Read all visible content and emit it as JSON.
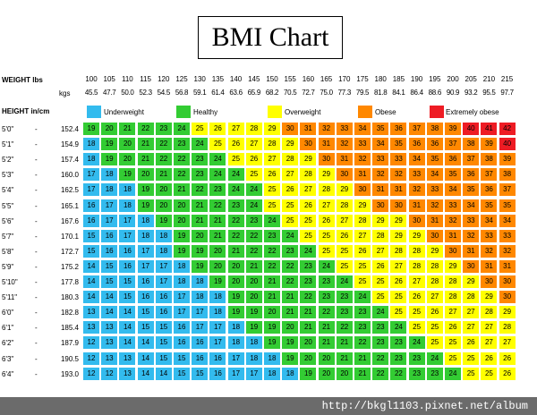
{
  "title": "BMI Chart",
  "weight_label": "WEIGHT lbs",
  "kgs_label": "kgs",
  "height_label": "HEIGHT in/cm",
  "watermark": "http://bkgl1103.pixnet.net/album",
  "colors": {
    "underweight": "#33bbee",
    "healthy": "#33cc33",
    "overweight": "#ffff00",
    "obese": "#ff8800",
    "extremely_obese": "#ee1c24"
  },
  "chart_data": {
    "type": "table",
    "title": "BMI Chart",
    "legend": [
      {
        "name": "Underweight",
        "color": "#33bbee"
      },
      {
        "name": "Healthy",
        "color": "#33cc33"
      },
      {
        "name": "Overweight",
        "color": "#ffff00"
      },
      {
        "name": "Obese",
        "color": "#ff8800"
      },
      {
        "name": "Extremely obese",
        "color": "#ee1c24"
      }
    ],
    "weights_lbs": [
      "100",
      "105",
      "110",
      "115",
      "120",
      "125",
      "130",
      "135",
      "140",
      "145",
      "150",
      "155",
      "160",
      "165",
      "170",
      "175",
      "180",
      "185",
      "190",
      "195",
      "200",
      "205",
      "210",
      "215"
    ],
    "weights_kgs": [
      "45.5",
      "47.7",
      "50.0",
      "52.3",
      "54.5",
      "56.8",
      "59.1",
      "61.4",
      "63.6",
      "65.9",
      "68.2",
      "70.5",
      "72.7",
      "75.0",
      "77.3",
      "79.5",
      "81.8",
      "84.1",
      "86.4",
      "88.6",
      "90.9",
      "93.2",
      "95.5",
      "97.7"
    ],
    "heights": [
      {
        "in": "5'0\"",
        "cm": "152.4"
      },
      {
        "in": "5'1\"",
        "cm": "154.9"
      },
      {
        "in": "5'2\"",
        "cm": "157.4"
      },
      {
        "in": "5'3\"",
        "cm": "160.0"
      },
      {
        "in": "5'4\"",
        "cm": "162.5"
      },
      {
        "in": "5'5\"",
        "cm": "165.1"
      },
      {
        "in": "5'6\"",
        "cm": "167.6"
      },
      {
        "in": "5'7\"",
        "cm": "170.1"
      },
      {
        "in": "5'8\"",
        "cm": "172.7"
      },
      {
        "in": "5'9\"",
        "cm": "175.2"
      },
      {
        "in": "5'10\"",
        "cm": "177.8"
      },
      {
        "in": "5'11\"",
        "cm": "180.3"
      },
      {
        "in": "6'0\"",
        "cm": "182.8"
      },
      {
        "in": "6'1\"",
        "cm": "185.4"
      },
      {
        "in": "6'2\"",
        "cm": "187.9"
      },
      {
        "in": "6'3\"",
        "cm": "190.5"
      },
      {
        "in": "6'4\"",
        "cm": "193.0"
      }
    ],
    "bmi_values": [
      [
        19,
        20,
        21,
        22,
        23,
        24,
        25,
        26,
        27,
        28,
        29,
        30,
        31,
        32,
        33,
        34,
        35,
        36,
        37,
        38,
        39,
        40,
        41,
        42
      ],
      [
        18,
        19,
        20,
        21,
        22,
        23,
        24,
        25,
        26,
        27,
        28,
        29,
        30,
        31,
        32,
        33,
        34,
        35,
        36,
        36,
        37,
        38,
        39,
        40
      ],
      [
        18,
        19,
        20,
        21,
        22,
        22,
        23,
        24,
        25,
        26,
        27,
        28,
        29,
        30,
        31,
        32,
        33,
        33,
        34,
        35,
        36,
        37,
        38,
        39
      ],
      [
        17,
        18,
        19,
        20,
        21,
        22,
        23,
        24,
        24,
        25,
        26,
        27,
        28,
        29,
        30,
        31,
        32,
        32,
        33,
        34,
        35,
        36,
        37,
        38
      ],
      [
        17,
        18,
        18,
        19,
        20,
        21,
        22,
        23,
        24,
        24,
        25,
        26,
        27,
        28,
        29,
        30,
        31,
        31,
        32,
        33,
        34,
        35,
        36,
        37
      ],
      [
        16,
        17,
        18,
        19,
        20,
        20,
        21,
        22,
        23,
        24,
        25,
        25,
        26,
        27,
        28,
        29,
        30,
        30,
        31,
        32,
        33,
        34,
        35,
        35
      ],
      [
        16,
        17,
        17,
        18,
        19,
        20,
        21,
        21,
        22,
        23,
        24,
        25,
        25,
        26,
        27,
        28,
        29,
        29,
        30,
        31,
        32,
        33,
        34,
        34
      ],
      [
        15,
        16,
        17,
        18,
        18,
        19,
        20,
        21,
        22,
        22,
        23,
        24,
        25,
        25,
        26,
        27,
        28,
        29,
        29,
        30,
        31,
        32,
        33,
        33
      ],
      [
        15,
        16,
        16,
        17,
        18,
        19,
        19,
        20,
        21,
        22,
        22,
        23,
        24,
        25,
        25,
        26,
        27,
        28,
        28,
        29,
        30,
        31,
        32,
        32
      ],
      [
        14,
        15,
        16,
        17,
        17,
        18,
        19,
        20,
        20,
        21,
        22,
        22,
        23,
        24,
        25,
        25,
        26,
        27,
        28,
        28,
        29,
        30,
        31,
        31
      ],
      [
        14,
        15,
        15,
        16,
        17,
        18,
        18,
        19,
        20,
        20,
        21,
        22,
        23,
        23,
        24,
        25,
        25,
        26,
        27,
        28,
        28,
        29,
        30,
        30
      ],
      [
        14,
        14,
        15,
        16,
        16,
        17,
        18,
        18,
        19,
        20,
        21,
        21,
        22,
        23,
        23,
        24,
        25,
        25,
        26,
        27,
        28,
        28,
        29,
        30
      ],
      [
        13,
        14,
        14,
        15,
        16,
        17,
        17,
        18,
        19,
        19,
        20,
        21,
        21,
        22,
        23,
        23,
        24,
        25,
        25,
        26,
        27,
        27,
        28,
        29
      ],
      [
        13,
        13,
        14,
        15,
        15,
        16,
        17,
        17,
        18,
        19,
        19,
        20,
        21,
        21,
        22,
        23,
        23,
        24,
        25,
        25,
        26,
        27,
        27,
        28
      ],
      [
        12,
        13,
        14,
        14,
        15,
        16,
        16,
        17,
        18,
        18,
        19,
        19,
        20,
        21,
        21,
        22,
        23,
        23,
        24,
        25,
        25,
        26,
        27,
        27
      ],
      [
        12,
        13,
        13,
        14,
        15,
        15,
        16,
        16,
        17,
        18,
        18,
        19,
        20,
        20,
        21,
        21,
        22,
        23,
        23,
        24,
        25,
        25,
        26,
        26
      ],
      [
        12,
        12,
        13,
        14,
        14,
        15,
        15,
        16,
        17,
        17,
        18,
        18,
        19,
        20,
        20,
        21,
        22,
        22,
        23,
        23,
        24,
        25,
        25,
        26
      ]
    ]
  }
}
